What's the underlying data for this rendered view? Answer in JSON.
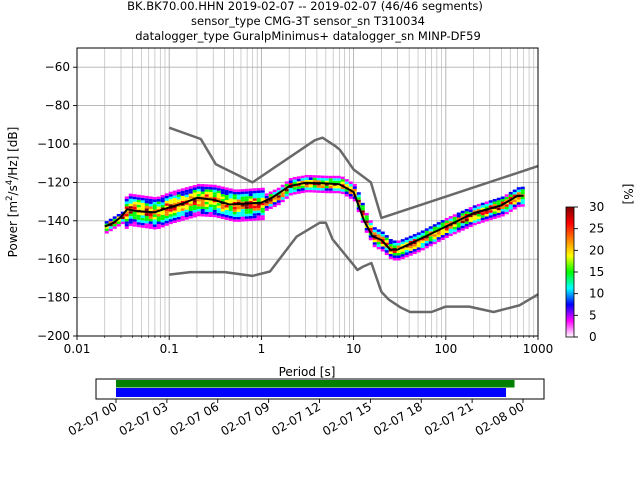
{
  "title_lines": [
    "BK.BK70.00.HHN   2019-02-07 -- 2019-02-07  (46/46 segments)",
    "sensor_type CMG-3T sensor_sn T310034",
    "datalogger_type GuralpMinimus+ datalogger_sn MINP-DF59"
  ],
  "chart_data": [
    {
      "type": "heatmap",
      "subtype": "probabilistic power spectral density",
      "xlabel": "Period [s]",
      "ylabel": "Power [m²/s⁴/Hz] [dB]",
      "ylabel_parts": {
        "pre": "Power [m",
        "sup1": "2",
        "mid": "/s",
        "sup2": "4",
        "post": "/Hz] [dB]"
      },
      "x_scale": "log",
      "xlim": [
        0.01,
        1000
      ],
      "ylim": [
        -200,
        -50
      ],
      "x_ticks": [
        {
          "value": 0.01,
          "label": "0.01"
        },
        {
          "value": 0.1,
          "label": "0.1"
        },
        {
          "value": 1,
          "label": "1"
        },
        {
          "value": 10,
          "label": "10"
        },
        {
          "value": 100,
          "label": "100"
        },
        {
          "value": 1000,
          "label": "1000"
        }
      ],
      "y_ticks": [
        {
          "value": -60,
          "label": "−60"
        },
        {
          "value": -80,
          "label": "−80"
        },
        {
          "value": -100,
          "label": "−100"
        },
        {
          "value": -120,
          "label": "−120"
        },
        {
          "value": -140,
          "label": "−140"
        },
        {
          "value": -160,
          "label": "−160"
        },
        {
          "value": -180,
          "label": "−180"
        },
        {
          "value": -200,
          "label": "−200"
        }
      ],
      "grid": true,
      "colorbar": {
        "label": "[%]",
        "range": [
          0,
          30
        ],
        "ticks": [
          {
            "value": 0,
            "label": "0"
          },
          {
            "value": 5,
            "label": "5"
          },
          {
            "value": 10,
            "label": "10"
          },
          {
            "value": 15,
            "label": "15"
          },
          {
            "value": 20,
            "label": "20"
          },
          {
            "value": 25,
            "label": "25"
          },
          {
            "value": 30,
            "label": "30"
          }
        ],
        "colors": [
          "#ffffff",
          "#ff00ff",
          "#0000ff",
          "#00ffff",
          "#00ff00",
          "#ffff00",
          "#ff8000",
          "#ff0000",
          "#800000"
        ]
      },
      "series": [
        {
          "name": "",
          "color": "#696969",
          "points": [
            [
              0.1,
              -91.5
            ],
            [
              0.22,
              -97.4
            ],
            [
              0.32,
              -110.5
            ],
            [
              0.8,
              -120
            ],
            [
              3.8,
              -98
            ],
            [
              4.6,
              -96.7
            ],
            [
              6.3,
              -101
            ],
            [
              7.1,
              -103
            ],
            [
              10,
              -113.3
            ],
            [
              15.4,
              -120
            ],
            [
              20,
              -138.5
            ],
            [
              1000,
              -111.5
            ]
          ]
        },
        {
          "name": "",
          "color": "#696969",
          "points": [
            [
              0.1,
              -168
            ],
            [
              0.17,
              -166.7
            ],
            [
              0.4,
              -166.7
            ],
            [
              0.8,
              -168.7
            ],
            [
              1.24,
              -166.4
            ],
            [
              2.4,
              -148.3
            ],
            [
              4.3,
              -141
            ],
            [
              5,
              -141
            ],
            [
              5.9,
              -149.6
            ],
            [
              10,
              -163
            ],
            [
              11,
              -165.6
            ],
            [
              12.5,
              -164
            ],
            [
              15.6,
              -162
            ],
            [
              20,
              -177
            ],
            [
              24,
              -181
            ],
            [
              32,
              -185
            ],
            [
              41,
              -187.5
            ],
            [
              70,
              -187.5
            ],
            [
              100,
              -184.7
            ],
            [
              180,
              -184.7
            ],
            [
              330,
              -187.5
            ],
            [
              630,
              -184
            ],
            [
              1000,
              -178.3
            ]
          ]
        },
        {
          "name": "",
          "color": "#000000",
          "points": [
            [
              0.02,
              -143
            ],
            [
              0.025,
              -141
            ],
            [
              0.03,
              -138
            ],
            [
              0.035,
              -134
            ],
            [
              0.045,
              -135
            ],
            [
              0.07,
              -135.5
            ],
            [
              0.1,
              -133
            ],
            [
              0.14,
              -131
            ],
            [
              0.2,
              -128
            ],
            [
              0.3,
              -129
            ],
            [
              0.45,
              -131.5
            ],
            [
              0.7,
              -131
            ],
            [
              1,
              -130.5
            ],
            [
              1.3,
              -128
            ],
            [
              2,
              -122
            ],
            [
              3,
              -120.2
            ],
            [
              5,
              -120.5
            ],
            [
              7,
              -121
            ],
            [
              10,
              -125
            ],
            [
              13,
              -140
            ],
            [
              16,
              -148
            ],
            [
              20,
              -150
            ],
            [
              25,
              -155
            ],
            [
              30,
              -155
            ],
            [
              50,
              -150
            ],
            [
              100,
              -143
            ],
            [
              200,
              -136
            ],
            [
              400,
              -132
            ],
            [
              600,
              -127
            ],
            [
              700,
              -127
            ]
          ]
        }
      ],
      "density_band": [
        [
          0.02,
          -143
        ],
        [
          0.03,
          -138
        ],
        [
          0.035,
          -134
        ],
        [
          0.07,
          -136
        ],
        [
          0.1,
          -133
        ],
        [
          0.2,
          -129
        ],
        [
          0.3,
          -129.5
        ],
        [
          0.5,
          -132
        ],
        [
          1,
          -131
        ],
        [
          1.5,
          -127
        ],
        [
          2,
          -122
        ],
        [
          3,
          -120.5
        ],
        [
          5,
          -121
        ],
        [
          7,
          -121
        ],
        [
          10,
          -125.5
        ],
        [
          13,
          -140
        ],
        [
          16,
          -148
        ],
        [
          20,
          -150.5
        ],
        [
          25,
          -155
        ],
        [
          30,
          -155
        ],
        [
          50,
          -150.5
        ],
        [
          100,
          -143
        ],
        [
          200,
          -136.5
        ],
        [
          400,
          -132
        ],
        [
          600,
          -127
        ],
        [
          700,
          -127
        ]
      ]
    },
    {
      "type": "bar",
      "subtype": "data availability timeline",
      "x_ticks": [
        "02-07 00",
        "02-07 03",
        "02-07 06",
        "02-07 09",
        "02-07 12",
        "02-07 15",
        "02-07 18",
        "02-07 21",
        "02-08 00"
      ],
      "xlim_hours": [
        0,
        24
      ],
      "series": [
        {
          "name": "",
          "color": "#008000",
          "start_hour": 0,
          "end_hour": 23.5
        },
        {
          "name": "",
          "color": "#0000ff",
          "start_hour": 0,
          "end_hour": 23
        }
      ]
    }
  ]
}
